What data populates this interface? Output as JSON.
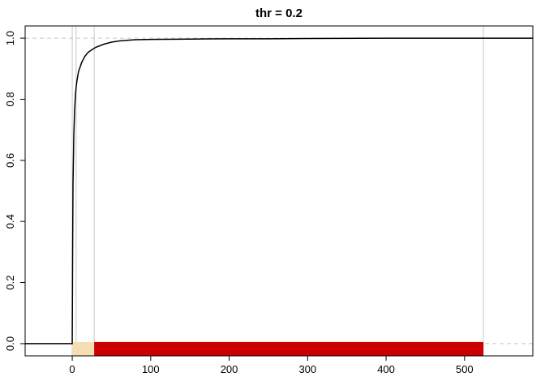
{
  "chart_data": {
    "type": "line",
    "title": "thr = 0.2",
    "xlabel": "",
    "ylabel": "",
    "xlim": [
      -60,
      587
    ],
    "ylim": [
      -0.04,
      1.04
    ],
    "x_ticks": [
      0,
      100,
      200,
      300,
      400,
      500
    ],
    "y_ticks": [
      0.0,
      0.2,
      0.4,
      0.6,
      0.8,
      1.0
    ],
    "x_tick_labels": [
      "0",
      "100",
      "200",
      "300",
      "400",
      "500"
    ],
    "y_tick_labels": [
      "0.0",
      "0.2",
      "0.4",
      "0.6",
      "0.8",
      "1.0"
    ],
    "grid": false,
    "series": [
      {
        "color": "#000000",
        "x": [
          -60,
          0,
          0.5,
          1,
          2,
          3,
          4,
          5,
          6,
          7,
          8,
          10,
          12,
          14,
          16,
          20,
          25,
          30,
          40,
          50,
          60,
          70,
          80,
          100,
          150,
          200,
          250,
          300,
          400,
          500,
          524,
          587
        ],
        "y": [
          0,
          0,
          0.3,
          0.52,
          0.68,
          0.76,
          0.81,
          0.84,
          0.86,
          0.875,
          0.89,
          0.905,
          0.92,
          0.93,
          0.94,
          0.953,
          0.962,
          0.97,
          0.98,
          0.987,
          0.991,
          0.993,
          0.995,
          0.996,
          0.997,
          0.998,
          0.998,
          0.999,
          1.0,
          1.0,
          1.0,
          1.0
        ]
      }
    ],
    "reference_hlines": [
      0,
      1
    ],
    "reference_vlines": [
      0,
      5,
      28,
      524
    ],
    "bands": [
      {
        "from": 0,
        "to": 28,
        "color": "#f5deb3"
      },
      {
        "from": 28,
        "to": 524,
        "color": "#cc0000"
      }
    ],
    "colors": {
      "line": "#000000",
      "hline": "#c8c8c8",
      "vline": "#c8c8c8",
      "axis": "#000000"
    }
  }
}
